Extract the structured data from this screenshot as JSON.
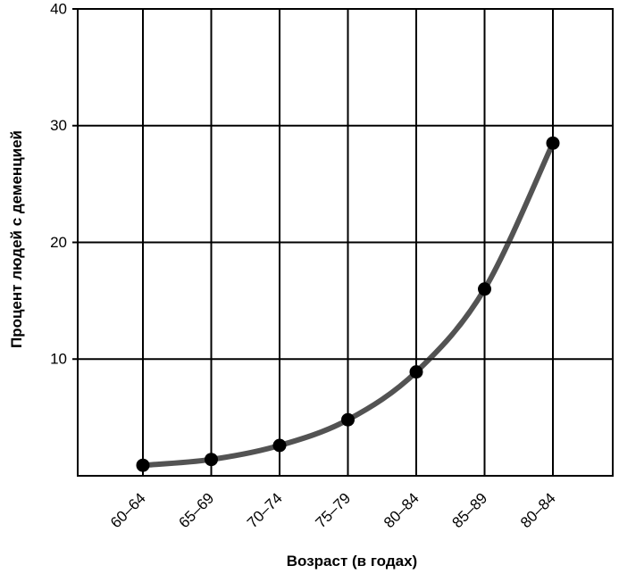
{
  "chart_data": {
    "type": "line",
    "title": "",
    "xlabel": "Возраст (в годах)",
    "ylabel": "Процент людей с деменцией",
    "categories": [
      "60–64",
      "65–69",
      "70–74",
      "75–79",
      "80–84",
      "85–89",
      "80–84"
    ],
    "series": [
      {
        "values": [
          0.9,
          1.4,
          2.6,
          4.8,
          8.9,
          16.0,
          28.5
        ]
      }
    ],
    "ylim": [
      0,
      40
    ],
    "yticks": [
      10,
      20,
      30,
      40
    ],
    "grid": true,
    "colors": {
      "line": "#222222",
      "marker": "#000000",
      "grid": "#000000"
    }
  }
}
